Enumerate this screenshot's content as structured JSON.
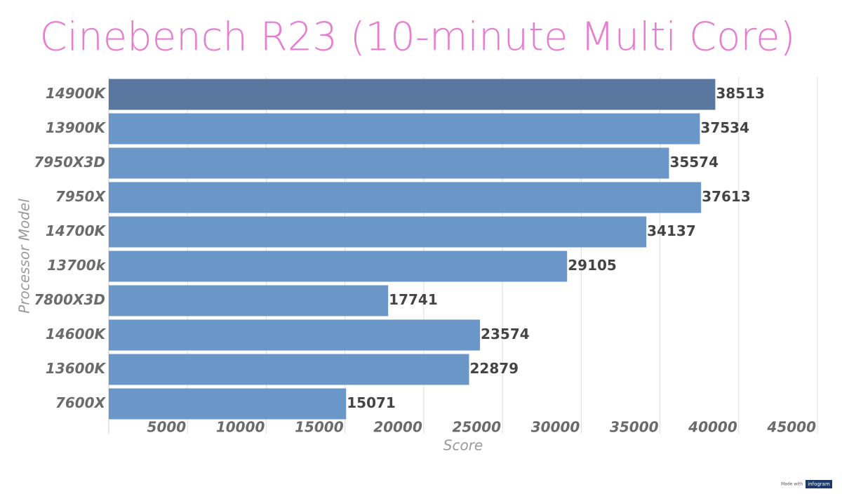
{
  "chart_data": {
    "type": "hbar",
    "title": "Cinebench R23 (10-minute Multi Core)",
    "x_label": "Score",
    "y_label": "Processor Model",
    "categories": [
      "14900K",
      "13900K",
      "7950X3D",
      "7950X",
      "14700K",
      "13700k",
      "7800X3D",
      "14600K",
      "13600K",
      "7600X"
    ],
    "values": [
      38513,
      37534,
      35574,
      37613,
      34137,
      29105,
      17741,
      23574,
      22879,
      15071
    ],
    "colors": [
      "#5a77a0",
      "#6a96c8",
      "#6a96c8",
      "#6a96c8",
      "#6a96c8",
      "#6a96c8",
      "#6a96c8",
      "#6a96c8",
      "#6a96c8",
      "#6a96c8"
    ],
    "xlim": [
      0,
      45000
    ],
    "xticks": [
      5000,
      10000,
      15000,
      20000,
      25000,
      30000,
      35000,
      40000,
      45000
    ],
    "grid": true,
    "credit": "Made with",
    "credit_brand": "infogram"
  }
}
